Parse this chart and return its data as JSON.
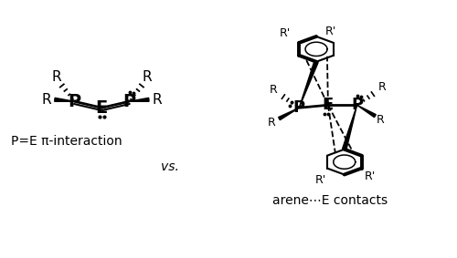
{
  "background": "#ffffff",
  "figsize": [
    5.0,
    2.83
  ],
  "dpi": 100,
  "label_left": "P=E π-interaction",
  "label_vs": "vs.",
  "label_right": "arene⋯E contacts"
}
